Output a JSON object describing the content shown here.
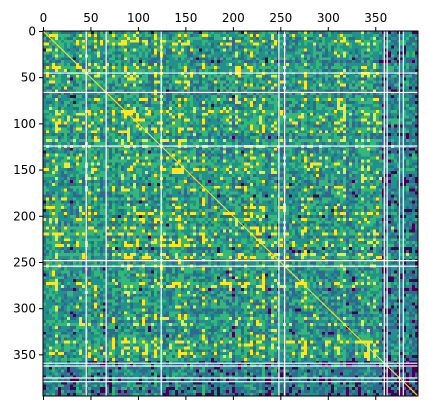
{
  "chart_data": {
    "type": "heatmap",
    "title": "",
    "xlabel": "",
    "ylabel": "",
    "n_rows": 395,
    "n_cols": 395,
    "xlim": [
      0,
      395
    ],
    "ylim": [
      0,
      395
    ],
    "x_axis_position": "top",
    "y_axis_inverted": true,
    "x_ticks": [
      0,
      50,
      100,
      150,
      200,
      250,
      300,
      350
    ],
    "x_tick_labels": [
      "0",
      "50",
      "100",
      "150",
      "200",
      "250",
      "300",
      "350"
    ],
    "y_ticks": [
      0,
      50,
      100,
      150,
      200,
      250,
      300,
      350
    ],
    "y_tick_labels": [
      "0",
      "50",
      "100",
      "150",
      "200",
      "250",
      "300",
      "350"
    ],
    "colormap": "viridis",
    "diagonal_value": "max",
    "blank_indices": [
      45,
      66,
      124,
      248,
      254,
      359,
      362,
      375,
      379
    ],
    "low_value_block_start": 355,
    "grid": false,
    "legend": "none",
    "colors": {
      "low": "#440154",
      "mid_low": "#31688e",
      "mid": "#21918c",
      "mid_high": "#35b779",
      "high": "#fde725",
      "blank": "#ffffff",
      "axis": "#000000"
    }
  }
}
